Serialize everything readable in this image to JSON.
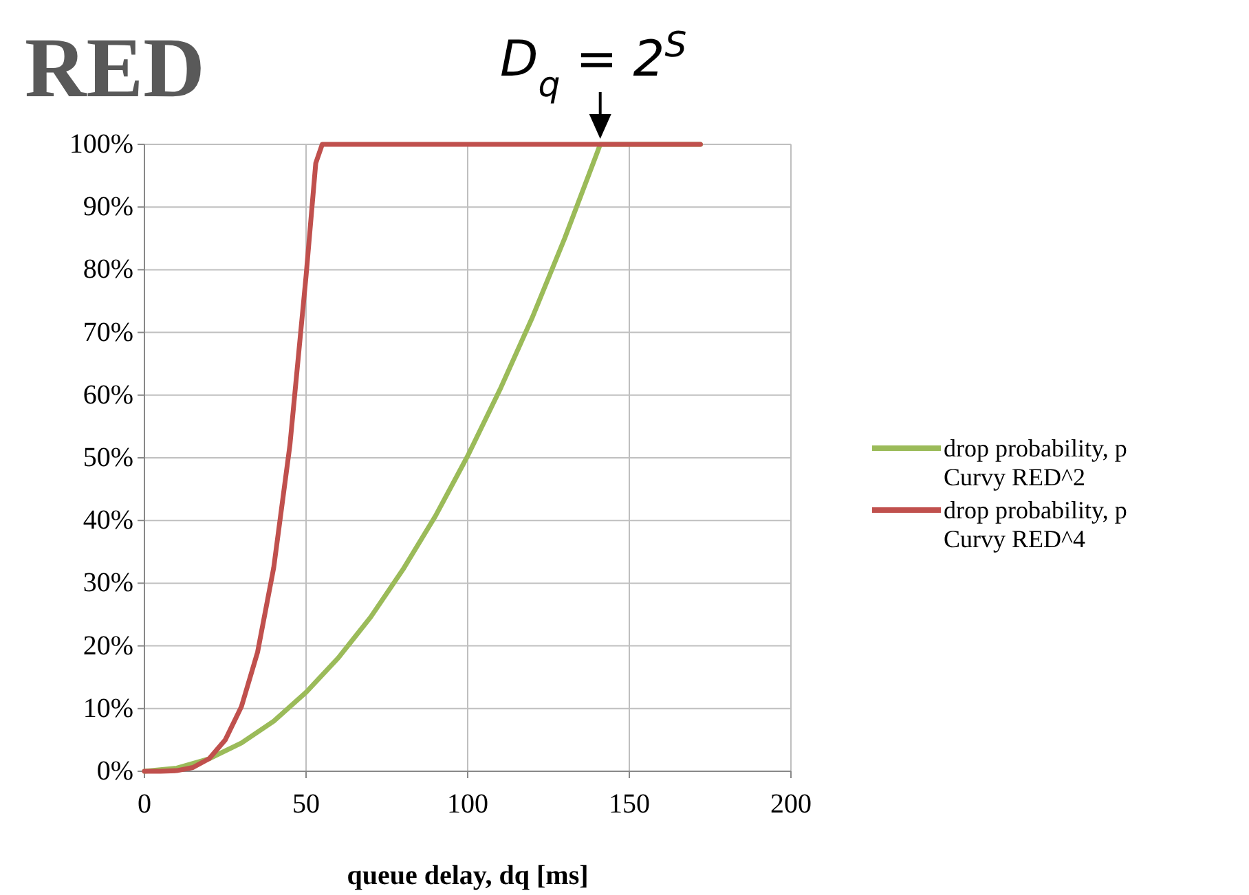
{
  "chart_data": {
    "type": "line",
    "title": "RED",
    "xlabel": "queue delay, dq [ms]",
    "xlim": [
      0,
      200
    ],
    "xticks": [
      0,
      50,
      100,
      150,
      200
    ],
    "ylim": [
      0,
      100
    ],
    "yticks": [
      {
        "value": 0,
        "label": "0%"
      },
      {
        "value": 10,
        "label": "10%"
      },
      {
        "value": 20,
        "label": "20%"
      },
      {
        "value": 30,
        "label": "30%"
      },
      {
        "value": 40,
        "label": "40%"
      },
      {
        "value": 50,
        "label": "50%"
      },
      {
        "value": 60,
        "label": "60%"
      },
      {
        "value": 70,
        "label": "70%"
      },
      {
        "value": 80,
        "label": "80%"
      },
      {
        "value": 90,
        "label": "90%"
      },
      {
        "value": 100,
        "label": "100%"
      }
    ],
    "grid": true,
    "legend": "right",
    "marker": "none",
    "line_style": "solid",
    "annotations": [
      {
        "text": "D$_{q}$ = 2$^{S}$",
        "x": 141,
        "y": 100
      }
    ],
    "series": [
      {
        "name": "drop probability, p\nCurvy RED^2",
        "color": "#9bbb59",
        "x": [
          0,
          10,
          20,
          30,
          40,
          50,
          60,
          70,
          80,
          90,
          100,
          110,
          120,
          130,
          140,
          141,
          172
        ],
        "values": [
          0,
          0.5,
          2,
          4.5,
          8,
          12.6,
          18.1,
          24.6,
          32.2,
          40.7,
          50.3,
          60.9,
          72.4,
          85,
          98.6,
          100,
          100
        ]
      },
      {
        "name": "drop probability, p\nCurvy RED^4",
        "color": "#c0504d",
        "x": [
          0,
          5,
          10,
          15,
          20,
          25,
          30,
          35,
          40,
          45,
          50,
          53,
          55,
          172
        ],
        "values": [
          0,
          0,
          0.1,
          0.6,
          2,
          5,
          10.3,
          19,
          32.5,
          52,
          79,
          97,
          100,
          100
        ]
      }
    ]
  }
}
